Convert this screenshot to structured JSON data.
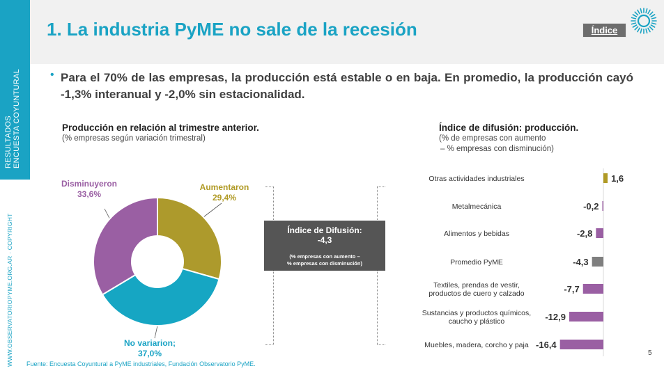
{
  "sidebar": {
    "line1": "RESULTADOS",
    "line2": "ENCUESTA COYUNTURAL",
    "url": "WWW.OBSERVATORIOPYME.ORG.AR · COPYRIGHT"
  },
  "header": {
    "title": "1. La industria PyME no sale de la recesión",
    "index_button": "Índice",
    "logo_icon": "observatorio-logo-icon"
  },
  "bullet": {
    "text": "Para el 70% de las empresas, la producción está estable o en baja. En promedio, la producción cayó -1,3% interanual y -2,0% sin estacionalidad."
  },
  "left_chart": {
    "title": "Producción en relación al trimestre anterior.",
    "subtitle": "(% empresas según variación trimestral)"
  },
  "right_chart": {
    "title": "Índice de difusión: producción.",
    "subtitle_line1": "(% de empresas con aumento",
    "subtitle_line2": "– % empresas con disminución)"
  },
  "pie_labels": {
    "dis_name": "Disminuyeron",
    "dis_value": "33,6%",
    "aum_name": "Aumentaron",
    "aum_value": "29,4%",
    "nov_name": "No variarion;",
    "nov_value": "37,0%"
  },
  "diffusion_box": {
    "title": "Índice de Difusión:",
    "value": "-4,3",
    "note1": "(% empresas con aumento –",
    "note2": "% empresas con disminución)"
  },
  "colors": {
    "accent": "#1aa3c4",
    "olive": "#b09a25",
    "purple": "#9a5fa3",
    "gray": "#6d6d6d"
  },
  "chart_data": [
    {
      "type": "pie",
      "categories": [
        "Aumentaron",
        "No variarion",
        "Disminuyeron"
      ],
      "values": [
        29.4,
        37.0,
        33.6
      ],
      "colors": [
        "#ad9a2c",
        "#16a6c3",
        "#9a5fa3"
      ]
    },
    {
      "type": "bar",
      "orientation": "horizontal",
      "categories": [
        [
          "Otras actividades industriales"
        ],
        [
          "Metalmecánica"
        ],
        [
          "Alimentos y bebidas"
        ],
        [
          "Promedio PyME"
        ],
        [
          "Textiles, prendas de vestir,",
          "productos de cuero y calzado"
        ],
        [
          "Sustancias y productos químicos,",
          "caucho y plástico"
        ],
        [
          "Muebles, madera, corcho y paja"
        ]
      ],
      "values": [
        1.6,
        -0.2,
        -2.8,
        -4.3,
        -7.7,
        -12.9,
        -16.4
      ],
      "value_labels": [
        "1,6",
        "-0,2",
        "-2,8",
        "-4,3",
        "-7,7",
        "-12,9",
        "-16,4"
      ],
      "bar_colors": [
        "#b09a25",
        "#9a5fa3",
        "#9a5fa3",
        "#7f7f7f",
        "#9a5fa3",
        "#9a5fa3",
        "#9a5fa3"
      ]
    }
  ],
  "footer": {
    "source": "Fuente: Encuesta Coyuntural a PyME industriales, Fundación Observatorio PyME.",
    "page": "5"
  }
}
